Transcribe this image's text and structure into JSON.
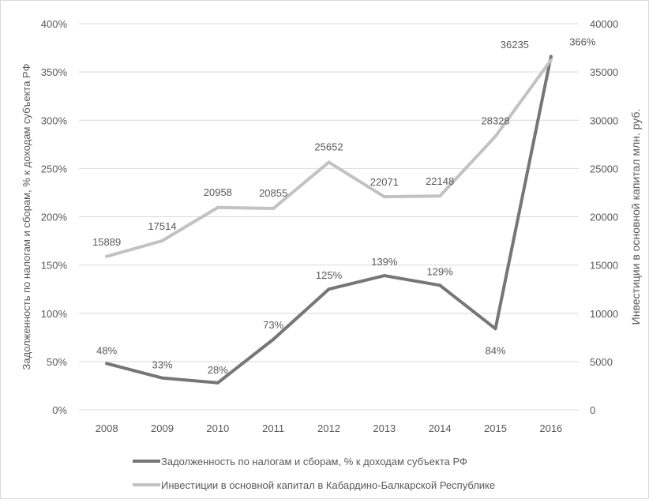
{
  "chart_data": {
    "type": "line",
    "categories": [
      "2008",
      "2009",
      "2010",
      "2011",
      "2012",
      "2013",
      "2014",
      "2015",
      "2016"
    ],
    "axes": {
      "left": {
        "label": "Задолженность по налогам и сборам, % к доходам субъекта РФ",
        "ylim": [
          0,
          400
        ],
        "ticks": [
          "0%",
          "50%",
          "100%",
          "150%",
          "200%",
          "250%",
          "300%",
          "350%",
          "400%"
        ]
      },
      "right": {
        "label": "Инвестиции в основной капитал  млн. руб.",
        "ylim": [
          0,
          40000
        ],
        "ticks": [
          "0",
          "5000",
          "10000",
          "15000",
          "20000",
          "25000",
          "30000",
          "35000",
          "40000"
        ]
      }
    },
    "series": [
      {
        "name": "Задолженность по налогам и сборам, % к доходам субъекта РФ",
        "axis": "left",
        "color": "#767676",
        "values": [
          48,
          33,
          28,
          73,
          125,
          139,
          129,
          84,
          366
        ],
        "labels": [
          "48%",
          "33%",
          "28%",
          "73%",
          "125%",
          "139%",
          "129%",
          "84%",
          "366%"
        ]
      },
      {
        "name": "Инвестиции в основной капитал в Кабардино-Балкарской Республике",
        "axis": "right",
        "color": "#c2c2c2",
        "values": [
          15889,
          17514,
          20958,
          20855,
          25652,
          22071,
          22148,
          28328,
          36235
        ],
        "labels": [
          "15889",
          "17514",
          "20958",
          "20855",
          "25652",
          "22071",
          "22148",
          "28328",
          "36235"
        ]
      }
    ],
    "grid": true,
    "legend_position": "bottom"
  }
}
